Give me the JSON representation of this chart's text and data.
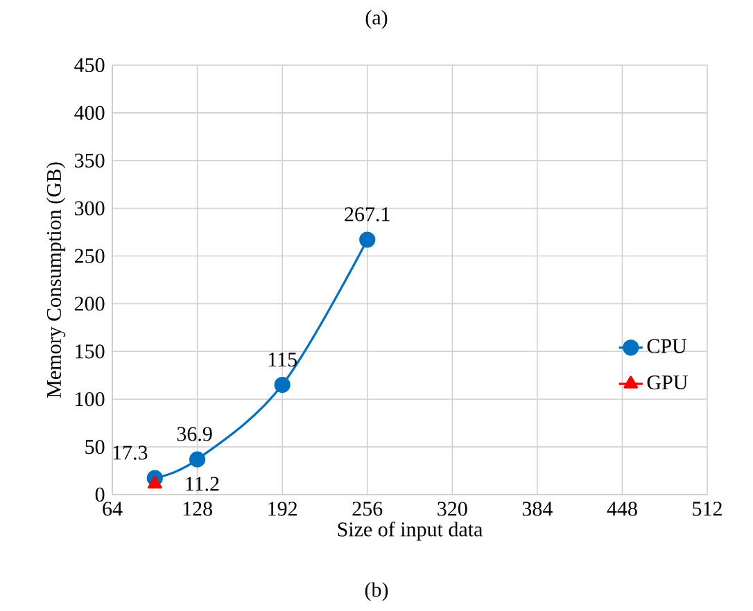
{
  "chart_data": {
    "type": "line",
    "xlabel": "Size of input data",
    "ylabel": "Memory Consumption (GB)",
    "annotations": [
      "(a)",
      "(b)"
    ],
    "x": [
      96,
      128,
      192,
      256
    ],
    "series": [
      {
        "name": "CPU",
        "color": "#0070c0",
        "marker": "circle",
        "values": [
          17.3,
          36.9,
          115,
          267.1
        ]
      },
      {
        "name": "GPU",
        "color": "#ff0000",
        "marker": "triangle",
        "x": [
          96
        ],
        "values": [
          11.2
        ]
      }
    ],
    "xlim": [
      64,
      512
    ],
    "xticks": [
      64,
      128,
      192,
      256,
      320,
      384,
      448,
      512
    ],
    "ylim": [
      0,
      450
    ],
    "yticks": [
      0,
      50,
      100,
      150,
      200,
      250,
      300,
      350,
      400,
      450
    ],
    "grid": true,
    "legend": "right",
    "data_labels": true
  }
}
